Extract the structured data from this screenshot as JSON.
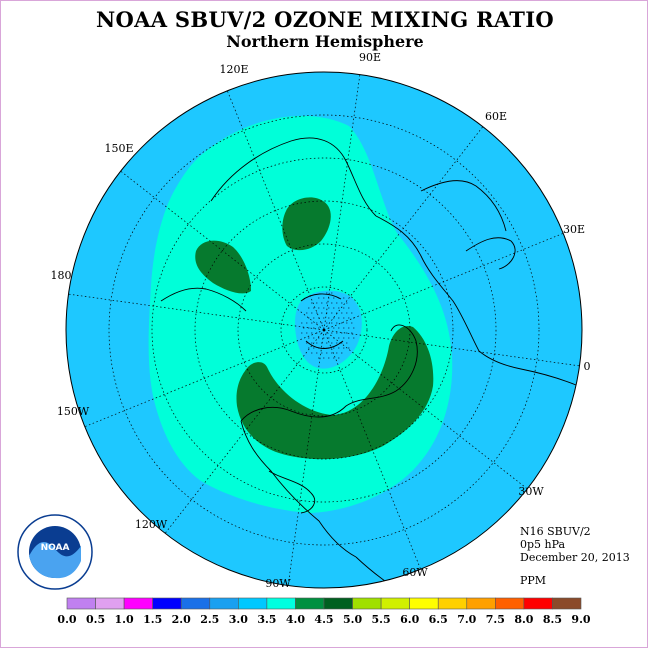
{
  "title": "NOAA SBUV/2 OZONE MIXING RATIO",
  "subtitle": "Northern Hemisphere",
  "longitude_labels": [
    "90E",
    "60E",
    "30E",
    "0",
    "30W",
    "60W",
    "90W",
    "120W",
    "150W",
    "180",
    "150E",
    "120E"
  ],
  "info": {
    "satellite": "N16 SBUV/2",
    "level": "0p5 hPa",
    "date": "December 20, 2013",
    "units": "PPM"
  },
  "legend": {
    "ticks": [
      "0.0",
      "0.5",
      "1.0",
      "1.5",
      "2.0",
      "2.5",
      "3.0",
      "3.5",
      "4.0",
      "4.5",
      "5.0",
      "5.5",
      "6.0",
      "6.5",
      "7.0",
      "7.5",
      "8.0",
      "8.5",
      "9.0"
    ],
    "colors": [
      "#c080f0",
      "#e0a0f0",
      "#ff00ff",
      "#0000ff",
      "#1a70e8",
      "#1aa0f0",
      "#00c8ff",
      "#00ffe0",
      "#009040",
      "#006020",
      "#a0e000",
      "#d0f000",
      "#ffff00",
      "#ffd000",
      "#ffa000",
      "#ff6000",
      "#ff0000",
      "#8b4a2a"
    ]
  },
  "map_colors": {
    "ocean_disk": "#1ec8ff",
    "band_3_5": "#00ffd9",
    "band_4_5": "#067a2e",
    "inner_low": "#1ec8ff"
  },
  "logo_text": "NOAA"
}
